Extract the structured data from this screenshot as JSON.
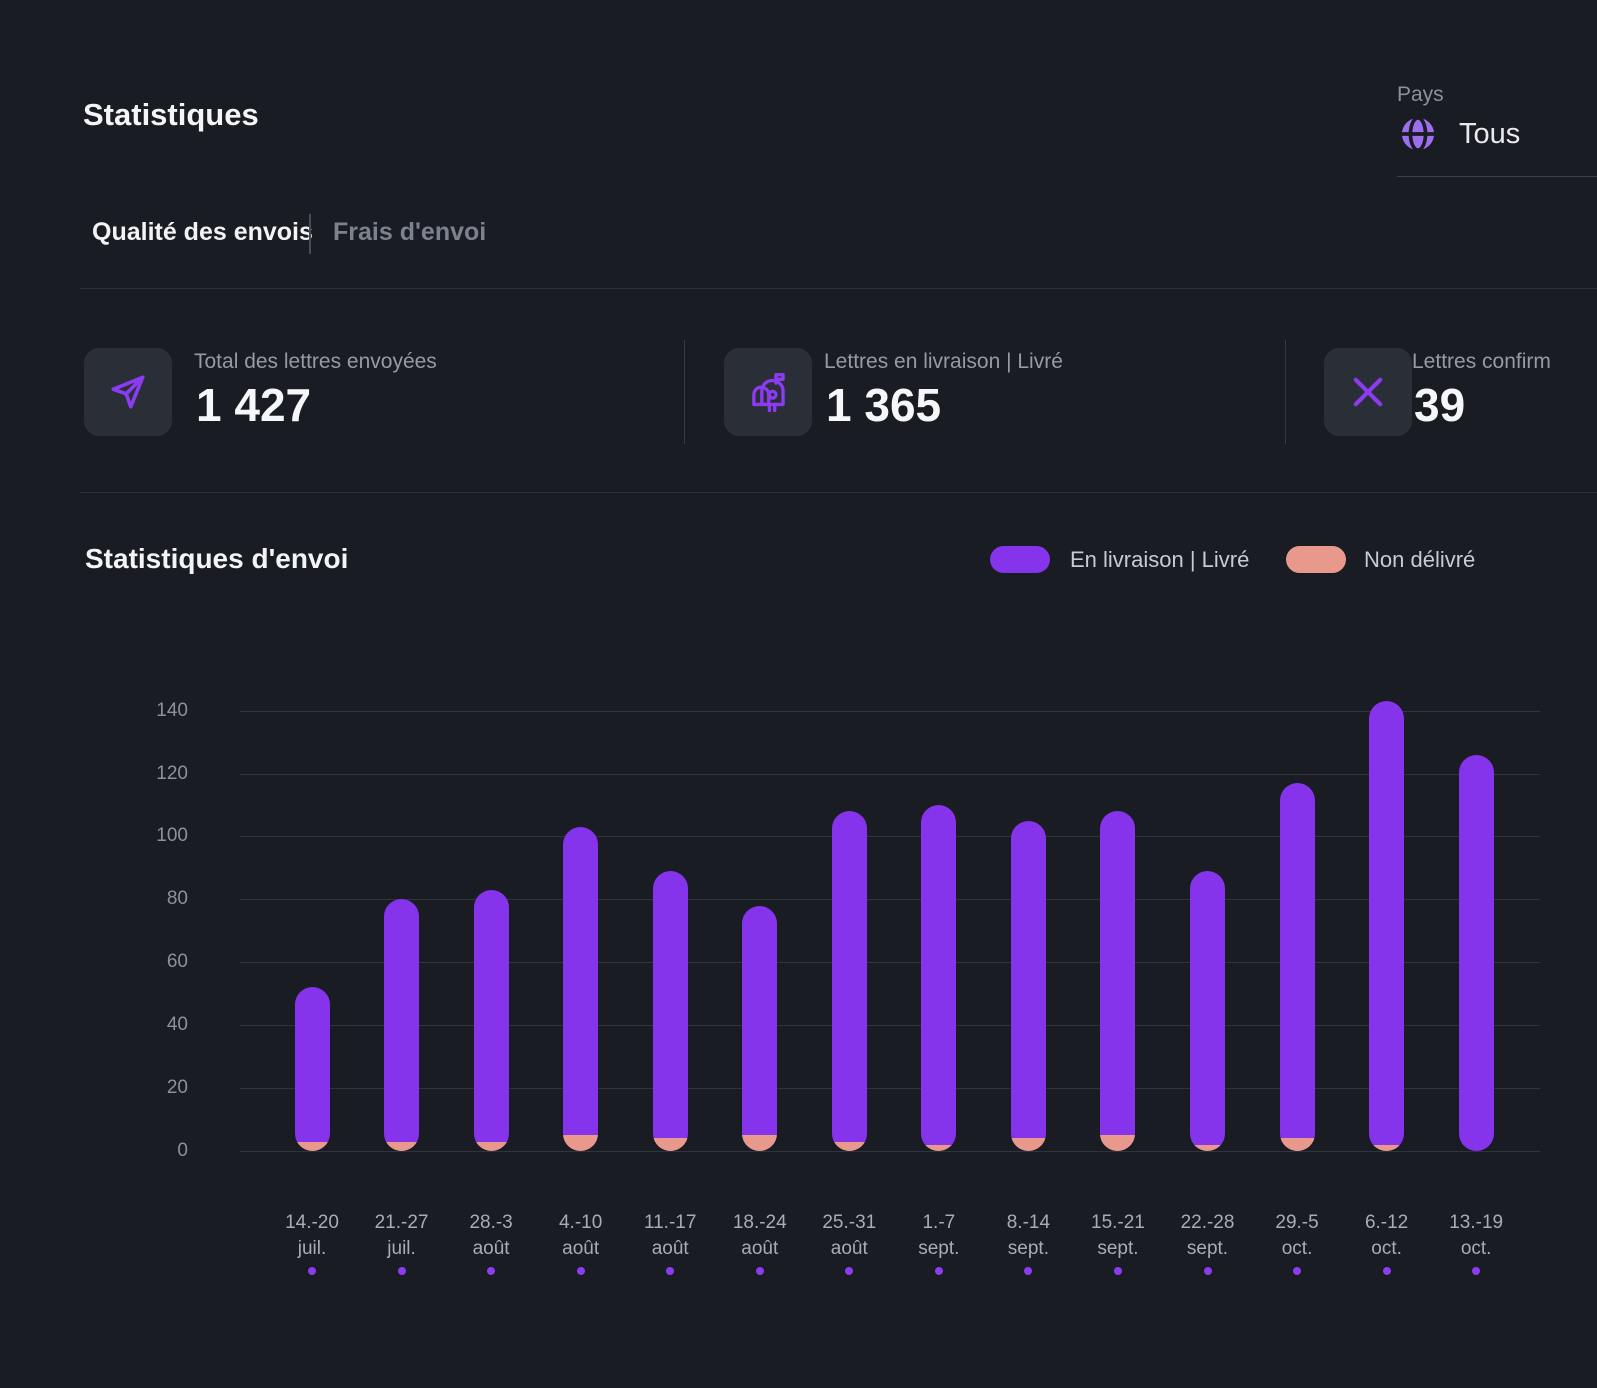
{
  "header": {
    "title": "Statistiques"
  },
  "country_filter": {
    "label": "Pays",
    "value": "Tous",
    "icon": "globe-icon"
  },
  "tabs": [
    {
      "label": "Qualité des envois",
      "active": true
    },
    {
      "label": "Frais d'envoi",
      "active": false
    }
  ],
  "stats": [
    {
      "icon": "send-icon",
      "label": "Total des lettres envoyées",
      "value": "1 427"
    },
    {
      "icon": "mailbox-icon",
      "label": "Lettres en livraison | Livré",
      "value": "1 365"
    },
    {
      "icon": "close-icon",
      "label": "Lettres confirm",
      "value": "39"
    }
  ],
  "section": {
    "title": "Statistiques d'envoi"
  },
  "legend": [
    {
      "label": "En livraison | Livré",
      "color": "#8633ec"
    },
    {
      "label": "Non délivré",
      "color": "#e9998c"
    }
  ],
  "colors": {
    "background": "#191c22",
    "accent_purple": "#8633ec",
    "accent_salmon": "#e9998c",
    "icon_purple": "#8b3bf0",
    "globe_purple": "#9d6ef0"
  },
  "chart_data": {
    "type": "bar",
    "stacked": true,
    "title": "Statistiques d'envoi",
    "xlabel": "",
    "ylabel": "",
    "ylim": [
      0,
      140
    ],
    "yticks": [
      0,
      20,
      40,
      60,
      80,
      100,
      120,
      140
    ],
    "grid": "horizontal",
    "legend_position": "top-right",
    "categories": [
      "14.-20 juil.",
      "21.-27 juil.",
      "28.-3 août",
      "4.-10 août",
      "11.-17 août",
      "18.-24 août",
      "25.-31 août",
      "1.-7 sept.",
      "8.-14 sept.",
      "15.-21 sept.",
      "22.-28 sept.",
      "29.-5 oct.",
      "6.-12 oct.",
      "13.-19 oct."
    ],
    "categories_lines": [
      [
        "14.-20",
        "juil."
      ],
      [
        "21.-27",
        "juil."
      ],
      [
        "28.-3",
        "août"
      ],
      [
        "4.-10",
        "août"
      ],
      [
        "11.-17",
        "août"
      ],
      [
        "18.-24",
        "août"
      ],
      [
        "25.-31",
        "août"
      ],
      [
        "1.-7",
        "sept."
      ],
      [
        "8.-14",
        "sept."
      ],
      [
        "15.-21",
        "sept."
      ],
      [
        "22.-28",
        "sept."
      ],
      [
        "29.-5",
        "oct."
      ],
      [
        "6.-12",
        "oct."
      ],
      [
        "13.-19",
        "oct."
      ]
    ],
    "series": [
      {
        "name": "Non délivré",
        "color": "#e9998c",
        "position": "bottom",
        "values": [
          3,
          3,
          3,
          5,
          4,
          5,
          3,
          2,
          4,
          5,
          2,
          4,
          2,
          0
        ]
      },
      {
        "name": "En livraison | Livré",
        "color": "#8633ec",
        "position": "top",
        "values": [
          49,
          77,
          80,
          98,
          85,
          73,
          105,
          108,
          101,
          103,
          87,
          113,
          141,
          126
        ]
      }
    ]
  }
}
